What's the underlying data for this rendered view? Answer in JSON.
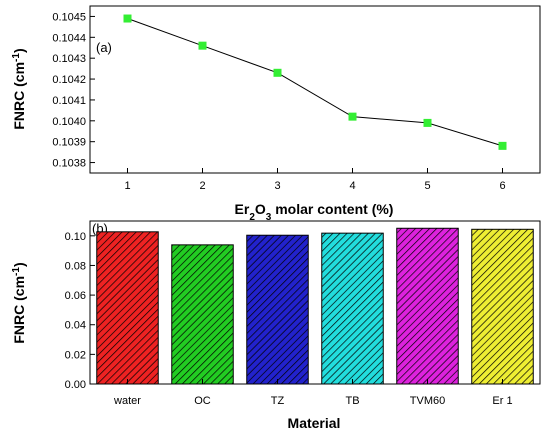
{
  "chart_data": [
    {
      "type": "line",
      "panel_label": "(a)",
      "x": [
        1,
        2,
        3,
        4,
        5,
        6
      ],
      "y": [
        0.10449,
        0.10436,
        0.10423,
        0.10402,
        0.10399,
        0.10388
      ],
      "xlabel_parts": {
        "pre": "Er",
        "sub1": "2",
        "mid": "O",
        "sub2": "3",
        "post": " molar content (%)"
      },
      "ylabel_main": "FNRC (cm",
      "ylabel_sup": "-1",
      "ylabel_end": ")",
      "xlim": [
        0.5,
        6.5
      ],
      "ylim": [
        0.10375,
        0.10455
      ],
      "xticks": [
        "1",
        "2",
        "3",
        "4",
        "5",
        "6"
      ],
      "yticks": [
        "0.1038",
        "0.1039",
        "0.1040",
        "0.1041",
        "0.1042",
        "0.1043",
        "0.1044",
        "0.1045"
      ],
      "marker_color": "#33ee33",
      "line_color": "#000000",
      "grid": false
    },
    {
      "type": "bar",
      "panel_label": "(b)",
      "categories": [
        "water",
        "OC",
        "TZ",
        "TB",
        "TVM60",
        "Er 1"
      ],
      "values": [
        0.1027,
        0.0939,
        0.1004,
        0.1018,
        0.1051,
        0.1044
      ],
      "colors": [
        "#ee2222",
        "#22cc22",
        "#2222cc",
        "#22dddd",
        "#dd22dd",
        "#eeee33"
      ],
      "hatch": "diagonal",
      "xlabel": "Material",
      "ylabel_main": "FNRC (cm",
      "ylabel_sup": "-1",
      "ylabel_end": ")",
      "ylim": [
        0,
        0.11
      ],
      "yticks": [
        "0.00",
        "0.02",
        "0.04",
        "0.06",
        "0.08",
        "0.10"
      ],
      "grid": false
    }
  ]
}
